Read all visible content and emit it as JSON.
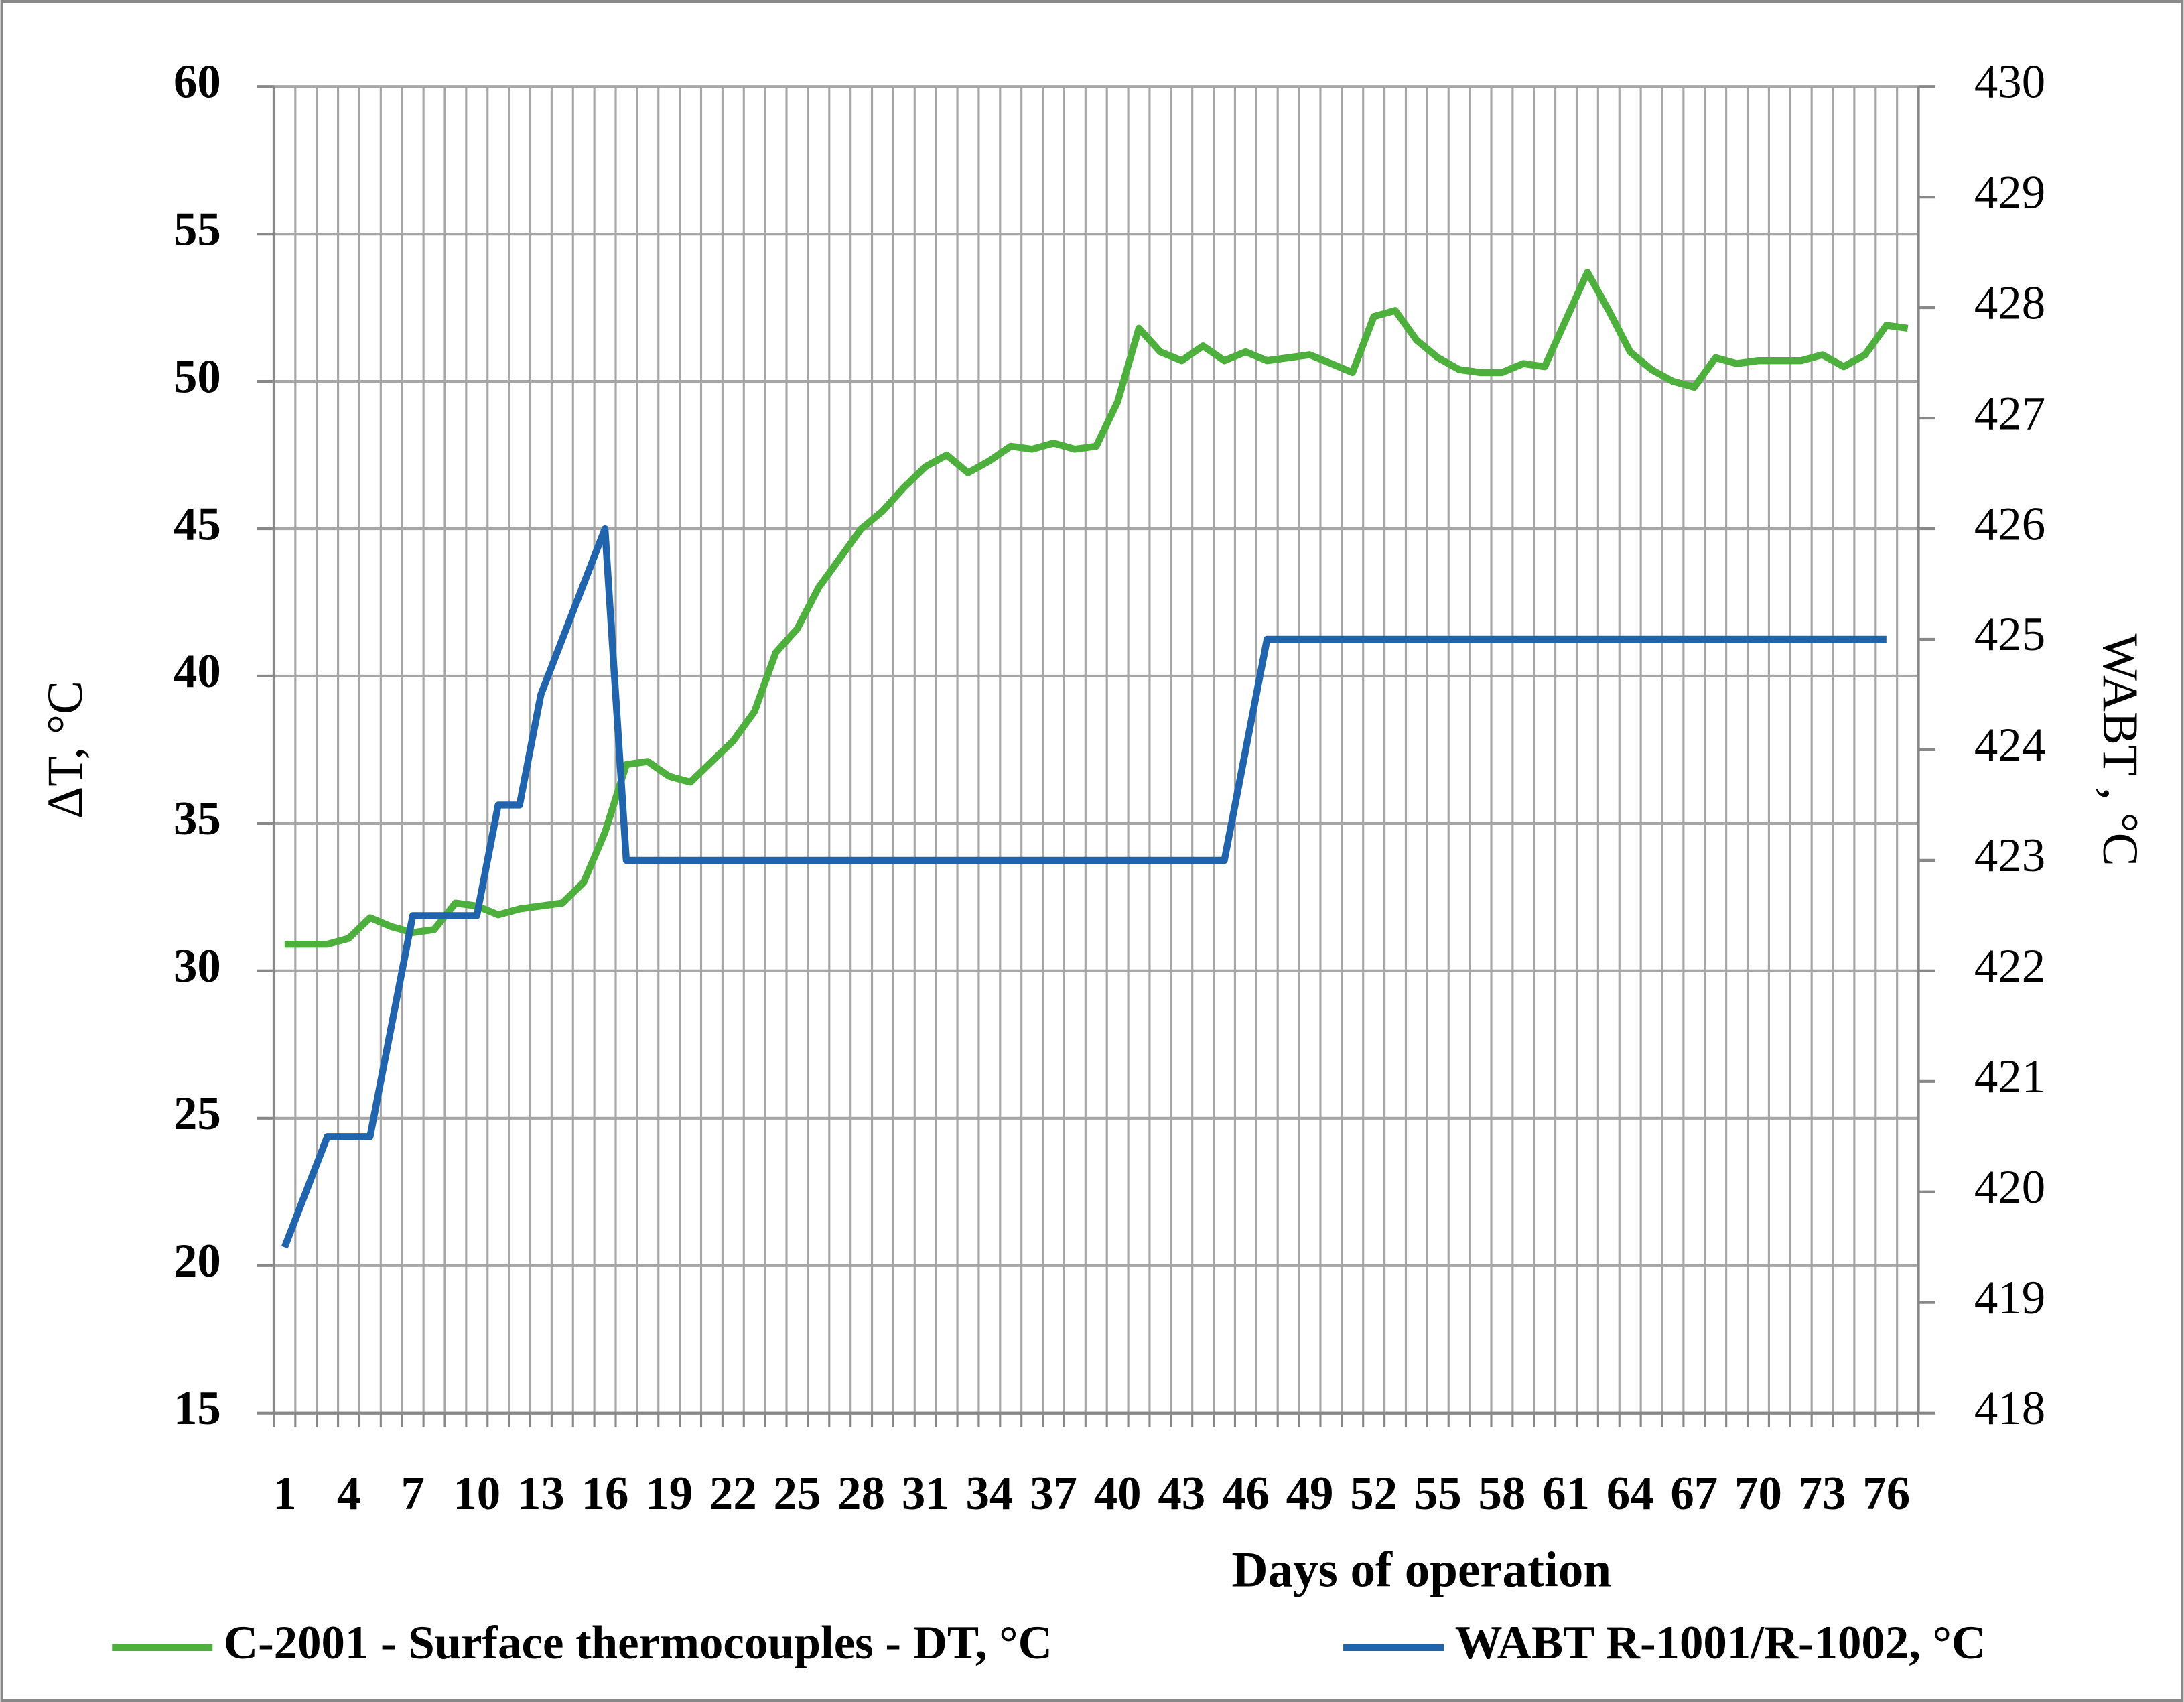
{
  "chart_data": {
    "type": "line",
    "xlabel": "Days of operation",
    "ylabel": "ΔT, °C",
    "y2label": "WABT , °C",
    "categories": [
      "1",
      null,
      null,
      "4",
      null,
      null,
      "7",
      null,
      null,
      "10",
      null,
      null,
      "13",
      null,
      null,
      "16",
      null,
      null,
      "19",
      null,
      null,
      "22",
      null,
      null,
      "25",
      null,
      null,
      "28",
      null,
      null,
      "31",
      null,
      null,
      "34",
      null,
      null,
      "37",
      null,
      null,
      "40",
      null,
      null,
      "43",
      null,
      null,
      "46",
      null,
      null,
      "49",
      null,
      null,
      "52",
      null,
      null,
      "55",
      null,
      null,
      "58",
      null,
      null,
      "61",
      null,
      null,
      "64",
      null,
      null,
      "67",
      null,
      null,
      "70",
      null,
      null,
      "73",
      null,
      null,
      "76",
      null
    ],
    "series": [
      {
        "name": "C-2001 - Surface thermocouples - DT, °C",
        "color": "#4daf3c",
        "values": [
          30.9,
          30.9,
          30.9,
          31.1,
          31.8,
          31.5,
          31.3,
          31.4,
          32.3,
          32.2,
          31.9,
          32.1,
          32.2,
          32.3,
          33.0,
          34.7,
          37.0,
          37.1,
          36.6,
          36.4,
          37.1,
          37.8,
          38.8,
          40.8,
          41.6,
          43.0,
          44.0,
          45.0,
          45.6,
          46.4,
          47.1,
          47.5,
          46.9,
          47.3,
          47.8,
          47.7,
          47.9,
          47.7,
          47.8,
          49.3,
          51.8,
          51.0,
          50.7,
          51.2,
          50.7,
          51.0,
          50.7,
          50.8,
          50.9,
          50.6,
          50.3,
          52.2,
          52.4,
          51.4,
          50.8,
          50.4,
          50.3,
          50.3,
          50.6,
          50.5,
          52.1,
          53.7,
          52.4,
          51.0,
          50.4,
          50.0,
          49.8,
          50.8,
          50.6,
          50.7,
          50.7,
          50.7,
          50.9,
          50.5,
          50.9,
          51.9,
          51.8
        ]
      },
      {
        "name": "WABT R-1001/R-1002, °C",
        "color": "#1f64ad",
        "axis": "y2",
        "values": [
          419.5,
          420.0,
          420.5,
          420.5,
          420.5,
          421.5,
          422.5,
          422.5,
          422.5,
          422.5,
          423.5,
          423.5,
          424.5,
          425.0,
          425.5,
          426.0,
          423.0,
          423.0,
          423.0,
          423.0,
          423.0,
          423.0,
          423.0,
          423.0,
          423.0,
          423.0,
          423.0,
          423.0,
          423.0,
          423.0,
          423.0,
          423.0,
          423.0,
          423.0,
          423.0,
          423.0,
          423.0,
          423.0,
          423.0,
          423.0,
          423.0,
          423.0,
          423.0,
          423.0,
          423.0,
          424.0,
          425.0,
          425.0,
          425.0,
          425.0,
          425.0,
          425.0,
          425.0,
          425.0,
          425.0,
          425.0,
          425.0,
          425.0,
          425.0,
          425.0,
          425.0,
          425.0,
          425.0,
          425.0,
          425.0,
          425.0,
          425.0,
          425.0,
          425.0,
          425.0,
          425.0,
          425.0,
          425.0,
          425.0,
          425.0,
          425.0,
          null
        ]
      }
    ],
    "ylim": [
      15,
      60
    ],
    "yticks": [
      15,
      20,
      25,
      30,
      35,
      40,
      45,
      50,
      55,
      60
    ],
    "y2lim": [
      418,
      430
    ],
    "y2ticks": [
      418,
      419,
      420,
      421,
      422,
      423,
      424,
      425,
      426,
      427,
      428,
      429,
      430
    ],
    "grid": true,
    "legend": "bottom"
  }
}
